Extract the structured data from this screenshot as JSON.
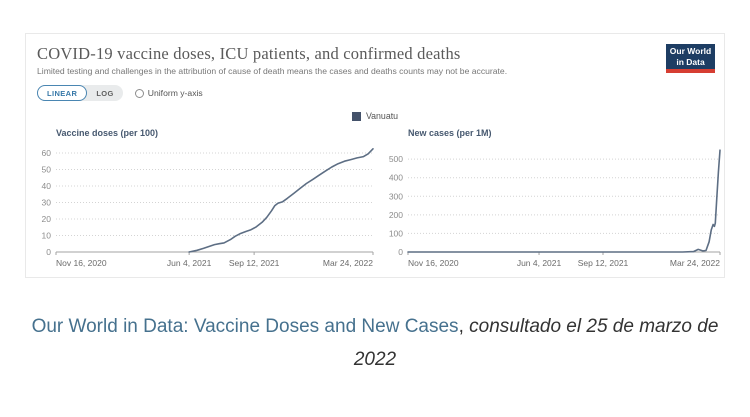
{
  "card": {
    "title": "COVID-19 vaccine doses, ICU patients, and confirmed deaths",
    "subtitle": "Limited testing and challenges in the attribution of cause of death means the cases and deaths counts may not be accurate.",
    "logo": {
      "line1": "Our World",
      "line2": "in Data",
      "bg": "#1d3d63",
      "accent": "#d63e32"
    },
    "controls": {
      "linear_label": "LINEAR",
      "log_label": "LOG",
      "active": "LINEAR",
      "uniform_label": "Uniform y-axis",
      "uniform_checked": false,
      "accent": "#3778a8"
    },
    "legend": {
      "label": "Vanuatu",
      "color": "#44526a"
    }
  },
  "chart_data": [
    {
      "type": "line",
      "title": "Vaccine doses (per 100)",
      "ylabel": "Vaccine doses (per 100)",
      "ylim": [
        0,
        63
      ],
      "y_ticks": [
        0,
        10,
        20,
        30,
        40,
        50,
        60
      ],
      "grid": "dotted horizontal",
      "x_ticks": [
        {
          "label": "Nov 16, 2020",
          "pos": 0,
          "align": "start"
        },
        {
          "label": "Jun 4, 2021",
          "pos": 0.42,
          "align": "middle"
        },
        {
          "label": "Sep 12, 2021",
          "pos": 0.625,
          "align": "middle"
        },
        {
          "label": "Mar 24, 2022",
          "pos": 1,
          "align": "end"
        }
      ],
      "series": [
        {
          "name": "Vanuatu",
          "color": "#5d6e84",
          "points": [
            [
              0.42,
              0
            ],
            [
              0.445,
              1
            ],
            [
              0.465,
              2.2
            ],
            [
              0.485,
              3.5
            ],
            [
              0.5,
              4.5
            ],
            [
              0.515,
              5
            ],
            [
              0.53,
              5.5
            ],
            [
              0.55,
              7.5
            ],
            [
              0.565,
              9.5
            ],
            [
              0.58,
              11
            ],
            [
              0.6,
              12.5
            ],
            [
              0.615,
              13.5
            ],
            [
              0.63,
              15
            ],
            [
              0.65,
              18
            ],
            [
              0.665,
              21
            ],
            [
              0.68,
              25
            ],
            [
              0.69,
              28
            ],
            [
              0.7,
              29.5
            ],
            [
              0.715,
              30.5
            ],
            [
              0.73,
              32.5
            ],
            [
              0.75,
              35.5
            ],
            [
              0.77,
              38.5
            ],
            [
              0.79,
              41.5
            ],
            [
              0.81,
              44
            ],
            [
              0.83,
              46.5
            ],
            [
              0.85,
              49
            ],
            [
              0.87,
              51.5
            ],
            [
              0.89,
              53.5
            ],
            [
              0.91,
              55
            ],
            [
              0.93,
              56
            ],
            [
              0.95,
              57
            ],
            [
              0.97,
              57.8
            ],
            [
              0.985,
              59.5
            ],
            [
              1,
              62.5
            ]
          ]
        }
      ]
    },
    {
      "type": "line",
      "title": "New cases (per 1M)",
      "ylabel": "New cases (per 1M)",
      "ylim": [
        0,
        560
      ],
      "y_ticks": [
        0,
        100,
        200,
        300,
        400,
        500
      ],
      "grid": "dotted horizontal",
      "x_ticks": [
        {
          "label": "Nov 16, 2020",
          "pos": 0,
          "align": "start"
        },
        {
          "label": "Jun 4, 2021",
          "pos": 0.42,
          "align": "middle"
        },
        {
          "label": "Sep 12, 2021",
          "pos": 0.625,
          "align": "middle"
        },
        {
          "label": "Mar 24, 2022",
          "pos": 1,
          "align": "end"
        }
      ],
      "series": [
        {
          "name": "Vanuatu",
          "color": "#5d6e84",
          "points": [
            [
              0,
              0
            ],
            [
              0.2,
              0
            ],
            [
              0.42,
              0
            ],
            [
              0.625,
              0
            ],
            [
              0.8,
              0
            ],
            [
              0.88,
              0
            ],
            [
              0.915,
              2
            ],
            [
              0.93,
              14
            ],
            [
              0.945,
              6
            ],
            [
              0.955,
              8
            ],
            [
              0.965,
              55
            ],
            [
              0.972,
              120
            ],
            [
              0.978,
              148
            ],
            [
              0.982,
              138
            ],
            [
              0.985,
              155
            ],
            [
              0.99,
              300
            ],
            [
              0.995,
              430
            ],
            [
              1,
              548
            ]
          ]
        }
      ]
    }
  ],
  "caption": {
    "link_text": "Our World in Data: Vaccine Doses and New Cases",
    "separator": ", ",
    "note_text": "consultado el 25 de marzo de 2022"
  }
}
